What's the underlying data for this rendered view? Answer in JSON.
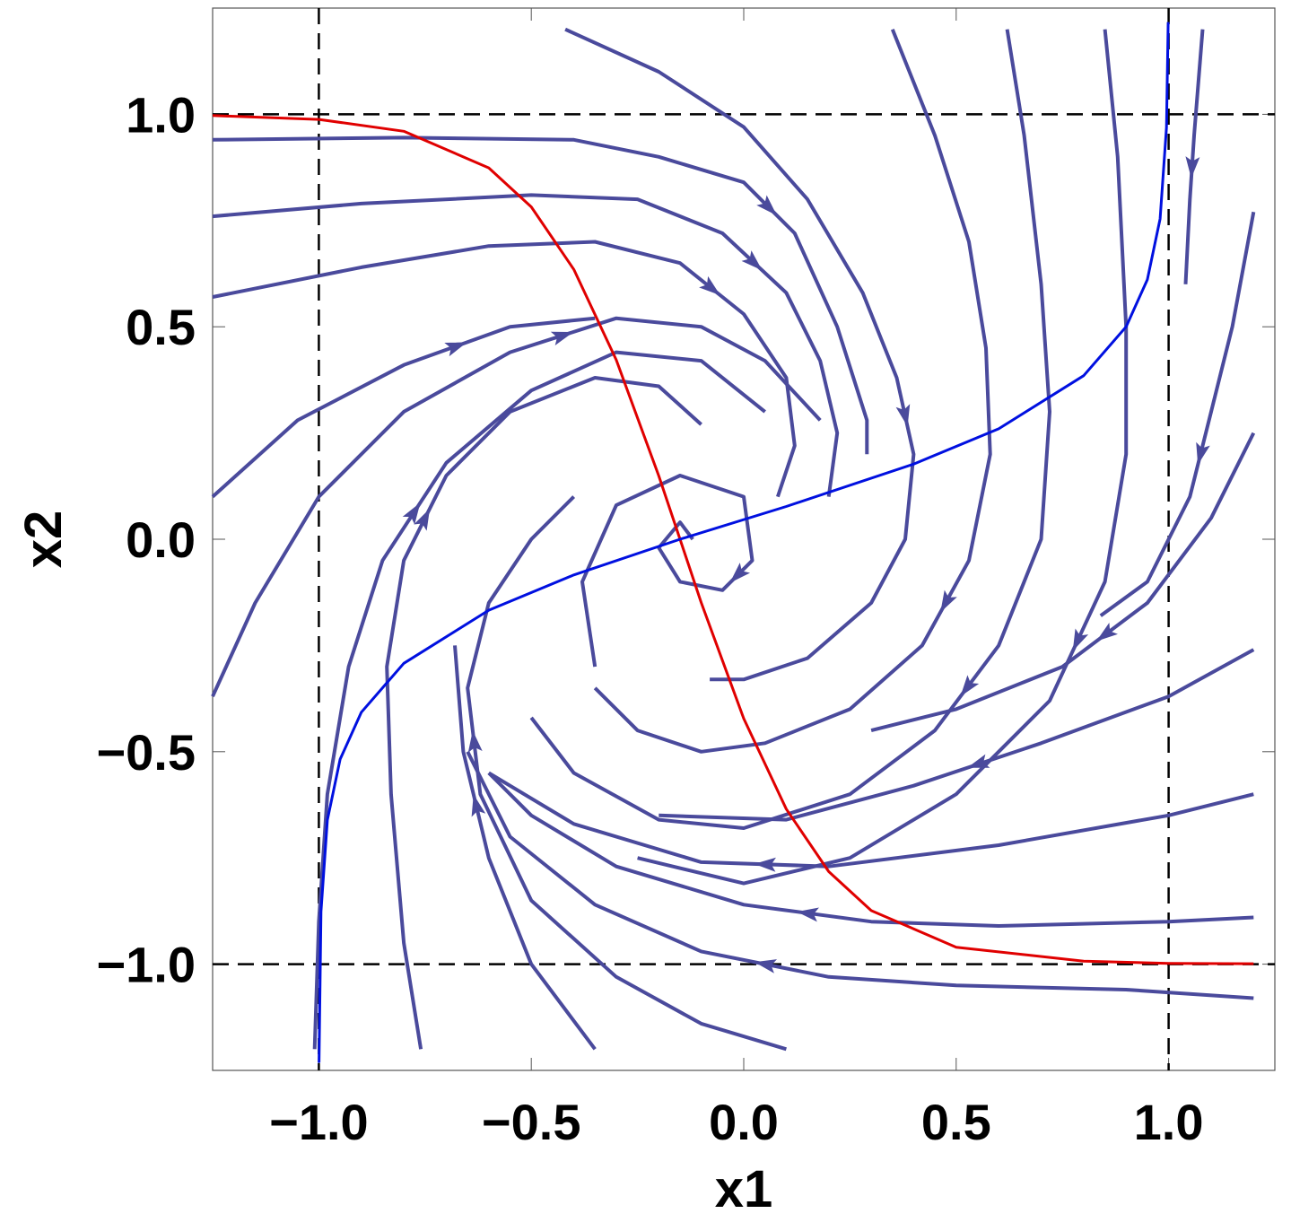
{
  "chart_data": {
    "type": "streamplot",
    "x_label": "x1",
    "y_label": "x2",
    "xlim": [
      -1.25,
      1.25
    ],
    "ylim": [
      -1.25,
      1.25
    ],
    "xticks": [
      {
        "value": -1,
        "label": "−1.0"
      },
      {
        "value": -0.5,
        "label": "−0.5"
      },
      {
        "value": 0,
        "label": "0.0"
      },
      0.5,
      {
        "value": 1,
        "label": "1.0"
      }
    ],
    "yticks": [
      {
        "value": -1,
        "label": "−1.0"
      },
      {
        "value": -0.5,
        "label": "−0.5"
      },
      {
        "value": 0,
        "label": "0.0"
      },
      0.5,
      {
        "value": 1,
        "label": "1.0"
      }
    ],
    "vlines": [
      -1,
      1
    ],
    "hlines": [
      -1,
      1
    ],
    "stream_color": "#4a4a9c",
    "streamlines": [
      {
        "x": [
          -1.25,
          -0.8,
          -0.4,
          -0.2,
          0.0,
          0.12,
          0.22,
          0.29,
          0.29
        ],
        "y": [
          0.94,
          0.945,
          0.94,
          0.9,
          0.84,
          0.72,
          0.5,
          0.28,
          0.2
        ]
      },
      {
        "x": [
          -1.25,
          -0.9,
          -0.5,
          -0.25,
          -0.05,
          0.1,
          0.18,
          0.22,
          0.2
        ],
        "y": [
          0.76,
          0.79,
          0.81,
          0.8,
          0.72,
          0.58,
          0.42,
          0.25,
          0.1
        ]
      },
      {
        "x": [
          -1.25,
          -0.9,
          -0.6,
          -0.35,
          -0.15,
          0.0,
          0.1,
          0.12,
          0.08
        ],
        "y": [
          0.57,
          0.64,
          0.69,
          0.7,
          0.65,
          0.53,
          0.38,
          0.22,
          0.1
        ]
      },
      {
        "x": [
          -0.42,
          -0.2,
          0.0,
          0.15,
          0.28,
          0.36,
          0.4,
          0.38,
          0.3,
          0.15,
          0.0,
          -0.08
        ],
        "y": [
          1.2,
          1.1,
          0.97,
          0.8,
          0.58,
          0.38,
          0.2,
          0.0,
          -0.15,
          -0.28,
          -0.33,
          -0.33
        ]
      },
      {
        "x": [
          0.35,
          0.45,
          0.53,
          0.57,
          0.58,
          0.53,
          0.42,
          0.25,
          0.05,
          -0.1,
          -0.25,
          -0.35
        ],
        "y": [
          1.2,
          0.95,
          0.7,
          0.45,
          0.2,
          -0.05,
          -0.25,
          -0.4,
          -0.48,
          -0.5,
          -0.45,
          -0.35
        ]
      },
      {
        "x": [
          0.62,
          0.66,
          0.7,
          0.72,
          0.7,
          0.6,
          0.45,
          0.25,
          0.0,
          -0.2,
          -0.4,
          -0.5
        ],
        "y": [
          1.2,
          0.95,
          0.6,
          0.3,
          0.0,
          -0.25,
          -0.45,
          -0.6,
          -0.68,
          -0.66,
          -0.55,
          -0.42
        ]
      },
      {
        "x": [
          0.85,
          0.88,
          0.9,
          0.9,
          0.85,
          0.72,
          0.5,
          0.25,
          0.0,
          -0.25
        ],
        "y": [
          1.2,
          0.9,
          0.5,
          0.2,
          -0.1,
          -0.38,
          -0.6,
          -0.75,
          -0.81,
          -0.75
        ]
      },
      {
        "x": [
          1.08,
          1.06,
          1.05,
          1.04
        ],
        "y": [
          1.2,
          0.95,
          0.8,
          0.6
        ]
      },
      {
        "x": [
          1.2,
          1.15,
          1.1,
          1.05,
          0.95,
          0.84
        ],
        "y": [
          0.77,
          0.5,
          0.3,
          0.1,
          -0.1,
          -0.18
        ]
      },
      {
        "x": [
          1.2,
          1.1,
          0.95,
          0.75,
          0.5,
          0.3
        ],
        "y": [
          0.25,
          0.05,
          -0.15,
          -0.3,
          -0.4,
          -0.45
        ]
      },
      {
        "x": [
          1.2,
          1.0,
          0.7,
          0.4,
          0.1,
          -0.2
        ],
        "y": [
          -0.26,
          -0.37,
          -0.48,
          -0.58,
          -0.66,
          -0.65
        ]
      },
      {
        "x": [
          1.2,
          1.0,
          0.6,
          0.2,
          -0.1,
          -0.4,
          -0.6
        ],
        "y": [
          -0.6,
          -0.65,
          -0.72,
          -0.77,
          -0.76,
          -0.67,
          -0.55
        ]
      },
      {
        "x": [
          1.2,
          1.0,
          0.6,
          0.3,
          0.0,
          -0.3,
          -0.5,
          -0.6
        ],
        "y": [
          -0.89,
          -0.9,
          -0.91,
          -0.9,
          -0.86,
          -0.77,
          -0.65,
          -0.55
        ]
      },
      {
        "x": [
          1.2,
          0.9,
          0.5,
          0.2,
          -0.1,
          -0.35,
          -0.55,
          -0.65
        ],
        "y": [
          -1.08,
          -1.06,
          -1.05,
          -1.03,
          -0.97,
          -0.86,
          -0.7,
          -0.5
        ]
      },
      {
        "x": [
          0.1,
          -0.1,
          -0.3,
          -0.5,
          -0.62,
          -0.65,
          -0.6,
          -0.5,
          -0.4
        ],
        "y": [
          -1.2,
          -1.14,
          -1.03,
          -0.85,
          -0.6,
          -0.35,
          -0.15,
          0.0,
          0.1
        ]
      },
      {
        "x": [
          -0.35,
          -0.5,
          -0.6,
          -0.66,
          -0.68
        ],
        "y": [
          -1.2,
          -1.0,
          -0.75,
          -0.5,
          -0.25
        ]
      },
      {
        "x": [
          -0.76,
          -0.8,
          -0.83,
          -0.84,
          -0.8,
          -0.7,
          -0.55,
          -0.35,
          -0.2,
          -0.1
        ],
        "y": [
          -1.2,
          -0.95,
          -0.6,
          -0.3,
          -0.05,
          0.15,
          0.3,
          0.38,
          0.36,
          0.27
        ]
      },
      {
        "x": [
          -1.01,
          -1.0,
          -0.98,
          -0.93,
          -0.85,
          -0.7,
          -0.5,
          -0.3,
          -0.1,
          0.05
        ],
        "y": [
          -1.2,
          -0.9,
          -0.6,
          -0.3,
          -0.05,
          0.18,
          0.35,
          0.44,
          0.42,
          0.3
        ]
      },
      {
        "x": [
          -1.25,
          -1.15,
          -1.0,
          -0.8,
          -0.55,
          -0.3,
          -0.1,
          0.05,
          0.18
        ],
        "y": [
          -0.37,
          -0.15,
          0.1,
          0.3,
          0.44,
          0.52,
          0.5,
          0.42,
          0.28
        ]
      },
      {
        "x": [
          -1.25,
          -1.05,
          -0.8,
          -0.55,
          -0.35
        ],
        "y": [
          0.1,
          0.28,
          0.41,
          0.5,
          0.52
        ]
      },
      {
        "x": [
          -0.35,
          -0.38,
          -0.3,
          -0.15,
          0.0,
          0.02,
          -0.05,
          -0.15,
          -0.2,
          -0.15,
          -0.12
        ],
        "y": [
          -0.3,
          -0.1,
          0.08,
          0.15,
          0.1,
          -0.05,
          -0.12,
          -0.1,
          -0.02,
          0.04,
          0.0
        ]
      }
    ],
    "series": [
      {
        "color": "#e00000",
        "x": [
          -1.25,
          -1.0,
          -0.8,
          -0.6,
          -0.5,
          -0.4,
          -0.3,
          -0.2,
          -0.15,
          -0.1,
          0,
          0.1,
          0.2,
          0.3,
          0.5,
          0.8,
          1.0,
          1.2
        ],
        "y": [
          0.997,
          0.988,
          0.96,
          0.874,
          0.782,
          0.635,
          0.422,
          0.149,
          0,
          -0.149,
          -0.422,
          -0.635,
          -0.782,
          -0.874,
          -0.96,
          -0.993,
          -0.998,
          -0.999
        ]
      },
      {
        "color": "#0010e0",
        "x": [
          -0.9995,
          -0.995,
          -0.98,
          -0.95,
          -0.9,
          -0.8,
          -0.6,
          -0.4,
          -0.15,
          0.1,
          0.4,
          0.6,
          0.8,
          0.9,
          0.95,
          0.98,
          0.995,
          0.999
        ],
        "y": [
          -1.232,
          -0.876,
          -0.661,
          -0.518,
          -0.407,
          -0.292,
          -0.167,
          -0.084,
          0,
          0.077,
          0.177,
          0.26,
          0.385,
          0.5,
          0.611,
          0.754,
          0.969,
          1.217
        ]
      }
    ]
  }
}
